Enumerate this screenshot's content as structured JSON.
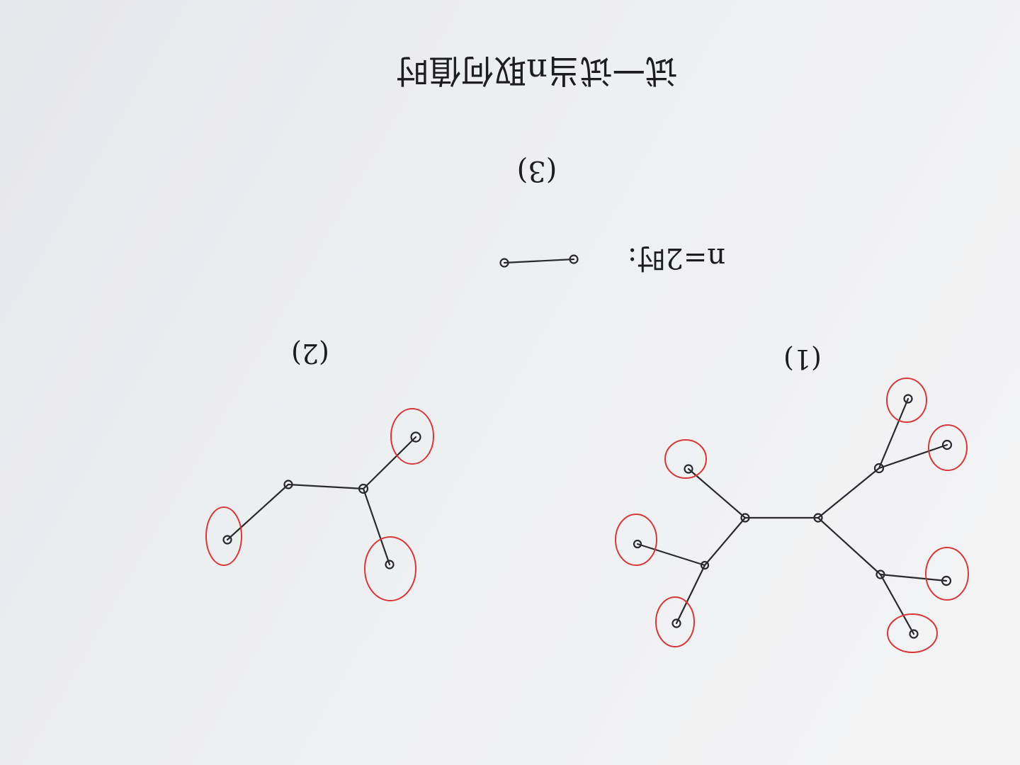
{
  "page": {
    "title": "试一试当n取何值时",
    "note": "Handwritten sheet photographed upside down; title and part labels rotated 180°."
  },
  "parts": [
    {
      "id": "3",
      "label": "(3)",
      "caption": "n=2时:"
    },
    {
      "id": "2",
      "label": "(2)"
    },
    {
      "id": "1",
      "label": "(1)"
    }
  ],
  "colors": {
    "ink": "#2a2a2c",
    "highlight": "#d8383a",
    "paper": "#eeeff1"
  }
}
